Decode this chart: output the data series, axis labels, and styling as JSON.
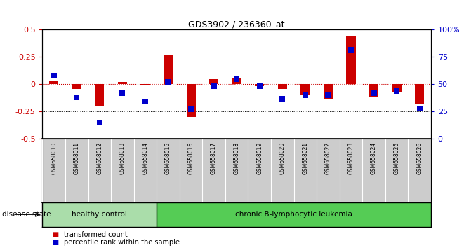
{
  "title": "GDS3902 / 236360_at",
  "samples": [
    "GSM658010",
    "GSM658011",
    "GSM658012",
    "GSM658013",
    "GSM658014",
    "GSM658015",
    "GSM658016",
    "GSM658017",
    "GSM658018",
    "GSM658019",
    "GSM658020",
    "GSM658021",
    "GSM658022",
    "GSM658023",
    "GSM658024",
    "GSM658025",
    "GSM658026"
  ],
  "red_values": [
    0.03,
    -0.04,
    -0.2,
    0.02,
    -0.01,
    0.27,
    -0.3,
    0.05,
    0.06,
    -0.02,
    -0.04,
    -0.1,
    -0.13,
    0.44,
    -0.12,
    -0.07,
    -0.18
  ],
  "blue_values": [
    58,
    38,
    15,
    42,
    34,
    52,
    27,
    48,
    55,
    48,
    37,
    40,
    40,
    82,
    42,
    44,
    28
  ],
  "healthy_count": 5,
  "disease_state_label": "disease state",
  "group1_label": "healthy control",
  "group2_label": "chronic B-lymphocytic leukemia",
  "legend1": "transformed count",
  "legend2": "percentile rank within the sample",
  "ylim_left": [
    -0.5,
    0.5
  ],
  "ylim_right": [
    0,
    100
  ],
  "yticks_left": [
    -0.5,
    -0.25,
    0.0,
    0.25,
    0.5
  ],
  "yticks_right": [
    0,
    25,
    50,
    75,
    100
  ],
  "red_color": "#cc0000",
  "blue_color": "#0000cc",
  "bar_width": 0.4,
  "dot_size": 28,
  "healthy_bg": "#aaddaa",
  "leukemia_bg": "#55cc55",
  "xlabel_bg": "#cccccc",
  "cell_border": "#888888"
}
